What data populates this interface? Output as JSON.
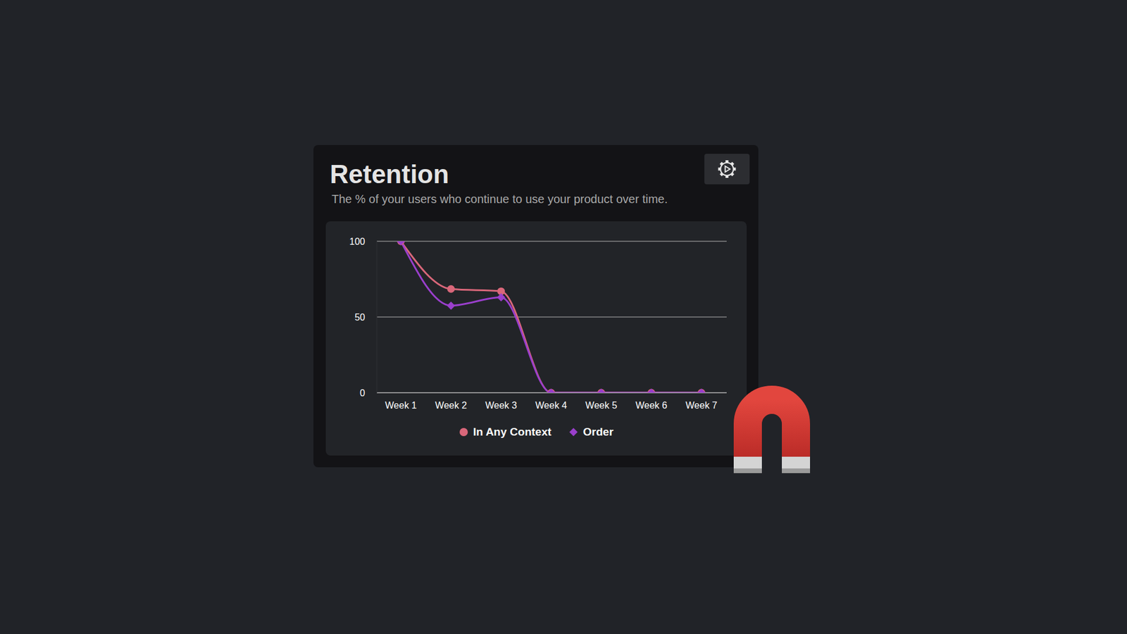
{
  "chart_data": {
    "type": "line",
    "title": "Retention",
    "subtitle": "The % of your users who continue to use your product over time.",
    "categories": [
      "Week 1",
      "Week 2",
      "Week 3",
      "Week 4",
      "Week 5",
      "Week 6",
      "Week 7"
    ],
    "series": [
      {
        "name": "In Any Context",
        "color": "#d9677a",
        "marker": "circle",
        "values": [
          100,
          68.5,
          67,
          0,
          0,
          0,
          0
        ]
      },
      {
        "name": "Order",
        "color": "#9a3fcc",
        "marker": "diamond",
        "values": [
          100,
          57.5,
          63,
          0,
          0,
          0,
          0
        ]
      }
    ],
    "ylim": [
      0,
      100
    ],
    "yticks": [
      0,
      50,
      100
    ],
    "grid": true,
    "legend": "bottom"
  }
}
